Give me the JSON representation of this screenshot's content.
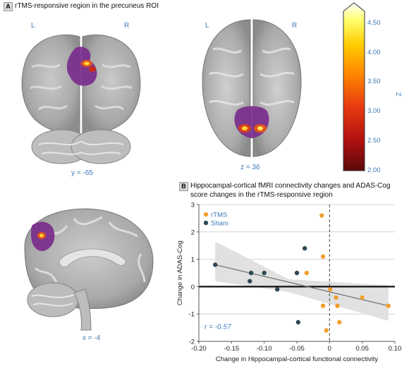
{
  "panel_a": {
    "letter": "A",
    "title": "rTMS-responsive region in the precuneus ROI",
    "coronal": {
      "left_label": "L",
      "right_label": "R",
      "coord_label": "y = -65"
    },
    "axial": {
      "left_label": "L",
      "right_label": "R",
      "coord_label": "z = 36"
    },
    "sagittal": {
      "coord_label": "x = -4"
    },
    "colorbar": {
      "label": "Z",
      "min": 2.0,
      "max": 4.7,
      "ticks": [
        "4.50",
        "4.00",
        "3.50",
        "3.00",
        "2.50",
        "2.00"
      ],
      "tick_values": [
        4.5,
        4.0,
        3.5,
        3.0,
        2.5,
        2.0
      ],
      "colors": [
        "#ffffff",
        "#ffff70",
        "#ffcc00",
        "#ff8800",
        "#e83a10",
        "#b01010",
        "#5a0a0a"
      ]
    }
  },
  "panel_b": {
    "letter": "B",
    "title_line1": "Hippocampal-cortical fMRI connectivity changes and ADAS-Cog",
    "title_line2": "score changes in the rTMS-responsive region"
  },
  "chart_data": {
    "type": "scatter",
    "xlabel": "Change in Hippocampal-cortical functional connectivity",
    "ylabel": "Change in ADAS-Cog",
    "xlim": [
      -0.2,
      0.1
    ],
    "ylim": [
      -2,
      3
    ],
    "xticks": [
      "-0.20",
      "-0.15",
      "-0.10",
      "-0.05",
      "0",
      "0.05",
      "0.10"
    ],
    "xtick_values": [
      -0.2,
      -0.15,
      -0.1,
      -0.05,
      0,
      0.05,
      0.1
    ],
    "yticks": [
      "3",
      "2",
      "1",
      "0",
      "-1",
      "-2"
    ],
    "ytick_values": [
      3,
      2,
      1,
      0,
      -1,
      -2
    ],
    "grid": "horizontal",
    "legend_position": "top-left",
    "annotation": "r = -0.57",
    "series": [
      {
        "name": "rTMS",
        "color": "#f0a030",
        "points": [
          [
            -0.012,
            2.6
          ],
          [
            -0.01,
            1.1
          ],
          [
            -0.035,
            0.5
          ],
          [
            -0.01,
            -0.7
          ],
          [
            0.001,
            -0.1
          ],
          [
            0.01,
            -0.4
          ],
          [
            0.012,
            -0.7
          ],
          [
            0.015,
            -1.3
          ],
          [
            -0.005,
            -1.6
          ],
          [
            0.05,
            -0.4
          ],
          [
            0.09,
            -0.7
          ]
        ]
      },
      {
        "name": "Sham",
        "color": "#2f4a55",
        "points": [
          [
            -0.175,
            0.8
          ],
          [
            -0.12,
            0.5
          ],
          [
            -0.122,
            0.2
          ],
          [
            -0.1,
            0.5
          ],
          [
            -0.08,
            -0.1
          ],
          [
            -0.05,
            0.5
          ],
          [
            -0.038,
            1.4
          ],
          [
            -0.048,
            -1.3
          ]
        ]
      }
    ],
    "fit_line": {
      "x": [
        -0.175,
        0.09
      ],
      "y": [
        0.8,
        -0.7
      ]
    },
    "reference_lines": {
      "x": 0,
      "y": 0
    }
  }
}
